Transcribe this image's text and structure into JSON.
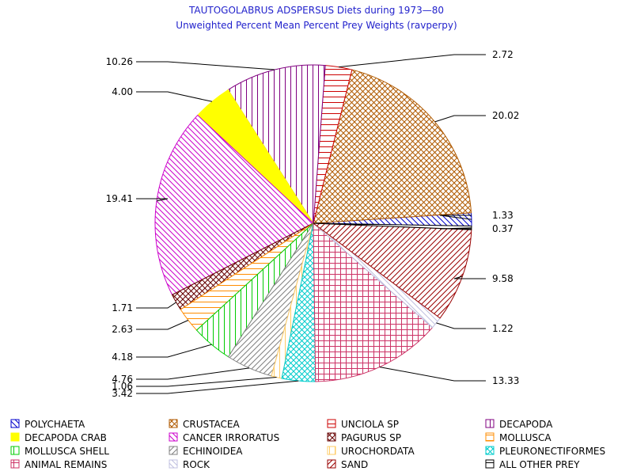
{
  "chart_data": {
    "type": "pie",
    "title": "TAUTOGOLABRUS ADSPERSUS Diets during 1973—80",
    "subtitle": "Unweighted Percent Mean Percent Prey  Weights (ravperpy)",
    "slices": [
      {
        "name": "POLYCHAETA",
        "value": 1.33,
        "label": "1.33",
        "color": "#0000cc",
        "pattern": "diag-down"
      },
      {
        "name": "CRUSTACEA",
        "value": 20.02,
        "label": "20.02",
        "color": "#b05a00",
        "pattern": "crosshatch-diag"
      },
      {
        "name": "UNCIOLA SP",
        "value": 2.72,
        "label": "2.72",
        "color": "#cc0000",
        "pattern": "horizontal"
      },
      {
        "name": "DECAPODA",
        "value": 10.26,
        "label": "10.26",
        "color": "#800080",
        "pattern": "vertical"
      },
      {
        "name": "DECAPODA CRAB",
        "value": 4.0,
        "label": "4.00",
        "color": "#ffff00",
        "pattern": "solid"
      },
      {
        "name": "CANCER IRRORATUS",
        "value": 19.41,
        "label": "19.41",
        "color": "#cc00cc",
        "pattern": "diag-down"
      },
      {
        "name": "PAGURUS SP",
        "value": 1.71,
        "label": "1.71",
        "color": "#660000",
        "pattern": "crosshatch-diag"
      },
      {
        "name": "MOLLUSCA",
        "value": 2.63,
        "label": "2.63",
        "color": "#ff8c00",
        "pattern": "horizontal"
      },
      {
        "name": "MOLLUSCA SHELL",
        "value": 4.18,
        "label": "4.18",
        "color": "#00cc00",
        "pattern": "vertical"
      },
      {
        "name": "ECHINOIDEA",
        "value": 4.76,
        "label": "4.76",
        "color": "#808080",
        "pattern": "diag-up"
      },
      {
        "name": "UROCHORDATA",
        "value": 1.06,
        "label": "1.06",
        "color": "#ffcc66",
        "pattern": "vertical"
      },
      {
        "name": "PLEURONECTIFORMES",
        "value": 3.42,
        "label": "3.42",
        "color": "#00cccc",
        "pattern": "crosshatch-diag"
      },
      {
        "name": "ANIMAL REMAINS",
        "value": 13.33,
        "label": "13.33",
        "color": "#cc3366",
        "pattern": "grid"
      },
      {
        "name": "ROCK",
        "value": 1.22,
        "label": "1.22",
        "color": "#c0c0e0",
        "pattern": "diag-down"
      },
      {
        "name": "SAND",
        "value": 9.58,
        "label": "9.58",
        "color": "#990000",
        "pattern": "diag-up"
      },
      {
        "name": "ALL OTHER PREY",
        "value": 0.37,
        "label": "0.37",
        "color": "#000000",
        "pattern": "horizontal"
      }
    ],
    "start_slice": "POLYCHAETA",
    "direction": "counterclockwise",
    "legend": {
      "position": "bottom",
      "columns": 4
    }
  }
}
